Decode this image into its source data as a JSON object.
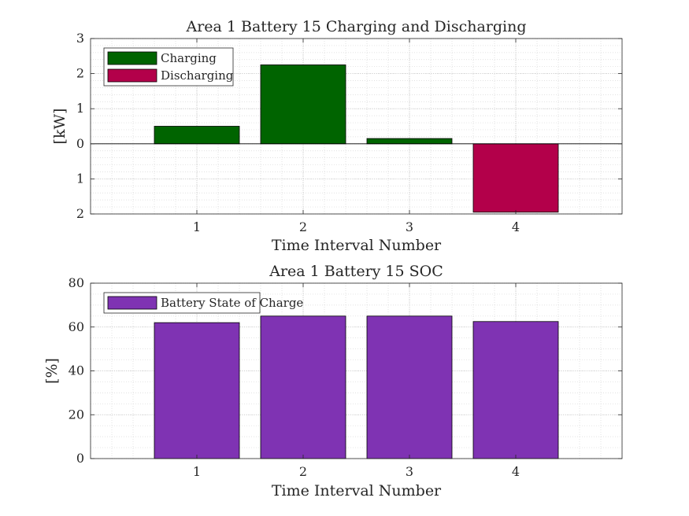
{
  "chart_data": [
    {
      "type": "bar",
      "title": "Area 1 Battery 15 Charging and Discharging",
      "xlabel": "Time Interval Number",
      "ylabel": "[kW]",
      "xlim": [
        0,
        5
      ],
      "ylim": [
        -2,
        3
      ],
      "x_ticks": [
        "1",
        "2",
        "3",
        "4"
      ],
      "y_ticks": [
        {
          "value": 3,
          "label": "3"
        },
        {
          "value": 2,
          "label": "2"
        },
        {
          "value": 1,
          "label": "1"
        },
        {
          "value": 0,
          "label": "0"
        },
        {
          "value": -1,
          "label": "1"
        },
        {
          "value": -2,
          "label": "2"
        }
      ],
      "grid": true,
      "minor_grid": true,
      "legend_position": "top-left",
      "series": [
        {
          "name": "Charging",
          "color": "#006400",
          "x": [
            1,
            2,
            3
          ],
          "values": [
            0.5,
            2.25,
            0.15
          ]
        },
        {
          "name": "Discharging",
          "color": "#B3004A",
          "x": [
            4
          ],
          "values": [
            -1.95
          ]
        }
      ]
    },
    {
      "type": "bar",
      "title": "Area 1 Battery 15 SOC",
      "xlabel": "Time Interval Number",
      "ylabel": "[%]",
      "xlim": [
        0,
        5
      ],
      "ylim": [
        0,
        80
      ],
      "x_ticks": [
        "1",
        "2",
        "3",
        "4"
      ],
      "y_ticks": [
        {
          "value": 0,
          "label": "0"
        },
        {
          "value": 20,
          "label": "20"
        },
        {
          "value": 40,
          "label": "40"
        },
        {
          "value": 60,
          "label": "60"
        },
        {
          "value": 80,
          "label": "80"
        }
      ],
      "grid": true,
      "minor_grid": true,
      "legend_position": "top-left",
      "series": [
        {
          "name": "Battery State of Charge",
          "color": "#7F33B3",
          "x": [
            1,
            2,
            3,
            4
          ],
          "values": [
            62,
            65,
            65,
            62.5
          ]
        }
      ]
    }
  ]
}
